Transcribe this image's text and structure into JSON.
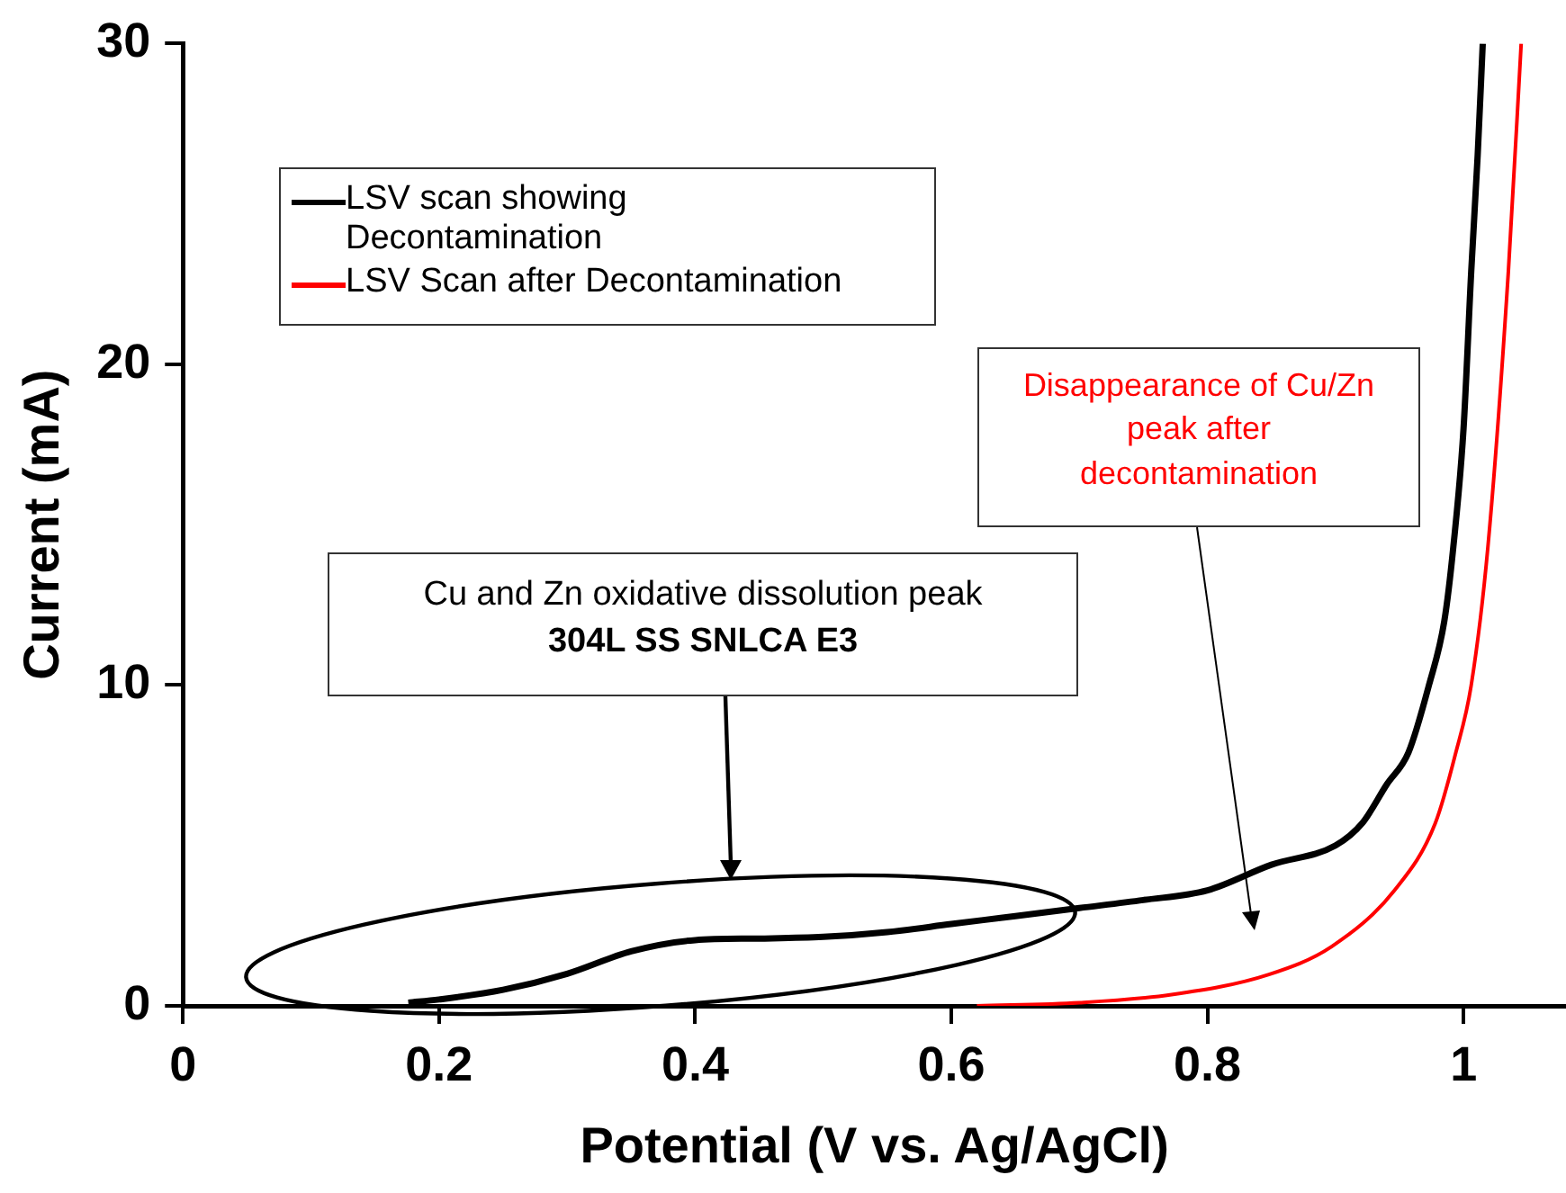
{
  "chart_data": {
    "type": "line",
    "xlabel": "Potential (V vs. Ag/AgCl)",
    "ylabel": "Current (mA)",
    "xlim": [
      0,
      1.08
    ],
    "xticks": [
      0,
      0.2,
      0.4,
      0.6,
      0.8,
      1
    ],
    "ylim": [
      0,
      30
    ],
    "yticks": [
      0,
      10,
      20,
      30
    ],
    "legend": "top left",
    "marker": "none",
    "line_style": "solid",
    "series": [
      {
        "name": "LSV scan showing Decontamination",
        "color": "#000000",
        "x": [
          0.176,
          0.2,
          0.25,
          0.3,
          0.35,
          0.4,
          0.45,
          0.5,
          0.55,
          0.6,
          0.65,
          0.7,
          0.75,
          0.8,
          0.85,
          0.9,
          0.921,
          0.94,
          0.957,
          0.973,
          0.985,
          0.992,
          1.0,
          1.006,
          1.011,
          1.015
        ],
        "values": [
          0.1,
          0.2,
          0.5,
          1.0,
          1.7,
          2.05,
          2.1,
          2.15,
          2.3,
          2.55,
          2.8,
          3.05,
          3.3,
          3.6,
          4.4,
          5.0,
          5.7,
          6.9,
          7.9,
          10,
          12,
          14.3,
          18,
          22.9,
          26.5,
          30
        ]
      },
      {
        "name": "LSV Scan after Decontamination",
        "color": "#ff0000",
        "x": [
          0.62,
          0.7,
          0.772,
          0.848,
          0.897,
          0.946,
          0.978,
          0.994,
          1.006,
          1.019,
          1.035,
          1.045
        ],
        "values": [
          0,
          0.1,
          0.35,
          0.98,
          1.85,
          3.6,
          5.7,
          7.9,
          10,
          14.3,
          22.9,
          30
        ]
      }
    ],
    "annotations": [
      "Cu and Zn oxidative dissolution peak",
      "304L SS SNLCA E3",
      "Disappearance of Cu/Zn peak after decontamination"
    ]
  }
}
